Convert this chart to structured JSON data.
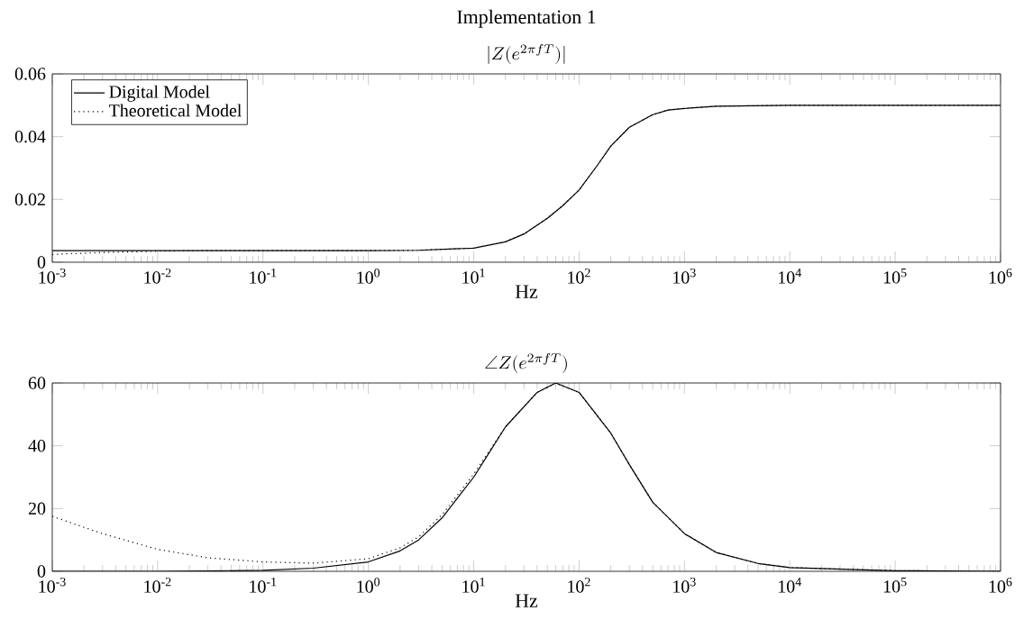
{
  "chart_data": [
    {
      "type": "line",
      "title": "Implementation 1",
      "subtitle": "|Z(e^{2\\pi fT})|",
      "xlabel": "Hz",
      "log": "x",
      "legend": "top left",
      "xlim": [
        0.001,
        1000000
      ],
      "ylim": [
        0,
        0.06
      ],
      "xticks": [
        {
          "value": 0.001,
          "label": "10$^{-3}$"
        },
        {
          "value": 0.01,
          "label": "10$^{-2}$"
        },
        {
          "value": 0.1,
          "label": "10$^{-1}$"
        },
        {
          "value": 1,
          "label": "10$^{0}$"
        },
        {
          "value": 10,
          "label": "10$^{1}$"
        },
        {
          "value": 100,
          "label": "10$^{2}$"
        },
        {
          "value": 1000,
          "label": "10$^{3}$"
        },
        {
          "value": 10000,
          "label": "10$^{4}$"
        },
        {
          "value": 100000,
          "label": "10$^{5}$"
        },
        {
          "value": 1000000,
          "label": "10$^{6}$"
        }
      ],
      "yticks": [
        0,
        0.02,
        0.04,
        0.06
      ],
      "series": [
        {
          "name": "Digital Model",
          "color": "#000000",
          "line_style": "solid",
          "x": [
            0.001,
            0.01,
            0.1,
            1,
            3,
            10,
            20,
            30,
            50,
            70,
            100,
            150,
            200,
            300,
            500,
            700,
            1000,
            2000,
            10000,
            100000,
            1000000
          ],
          "values": [
            0.0037,
            0.0037,
            0.0037,
            0.0037,
            0.0038,
            0.0045,
            0.0065,
            0.009,
            0.014,
            0.018,
            0.023,
            0.031,
            0.037,
            0.043,
            0.047,
            0.0485,
            0.049,
            0.0497,
            0.05,
            0.05,
            0.05
          ]
        },
        {
          "name": "Theoretical Model",
          "color": "#000000",
          "line_style": "dotted",
          "x": [
            0.001,
            0.003,
            0.01,
            0.03,
            0.1,
            1,
            3,
            10,
            20,
            30,
            50,
            70,
            100,
            150,
            200,
            300,
            500,
            700,
            1000,
            2000,
            10000,
            100000,
            1000000
          ],
          "values": [
            0.0025,
            0.0031,
            0.0035,
            0.0037,
            0.0037,
            0.0037,
            0.0038,
            0.0045,
            0.0065,
            0.009,
            0.014,
            0.018,
            0.023,
            0.031,
            0.037,
            0.043,
            0.047,
            0.0485,
            0.049,
            0.0497,
            0.05,
            0.05,
            0.05
          ]
        }
      ]
    },
    {
      "type": "line",
      "title": "\\angle Z(e^{2\\pi fT})",
      "xlabel": "Hz",
      "log": "x",
      "xlim": [
        0.001,
        1000000
      ],
      "ylim": [
        0,
        60
      ],
      "xticks": [
        {
          "value": 0.001,
          "label": "10$^{-3}$"
        },
        {
          "value": 0.01,
          "label": "10$^{-2}$"
        },
        {
          "value": 0.1,
          "label": "10$^{-1}$"
        },
        {
          "value": 1,
          "label": "10$^{0}$"
        },
        {
          "value": 10,
          "label": "10$^{1}$"
        },
        {
          "value": 100,
          "label": "10$^{2}$"
        },
        {
          "value": 1000,
          "label": "10$^{3}$"
        },
        {
          "value": 10000,
          "label": "10$^{4}$"
        },
        {
          "value": 100000,
          "label": "10$^{5}$"
        },
        {
          "value": 1000000,
          "label": "10$^{6}$"
        }
      ],
      "yticks": [
        0,
        20,
        40,
        60
      ],
      "series": [
        {
          "color": "#000000",
          "line_style": "solid",
          "x": [
            0.001,
            0.01,
            0.1,
            0.3,
            1,
            2,
            3,
            5,
            10,
            20,
            40,
            60,
            100,
            200,
            300,
            500,
            1000,
            2000,
            5000,
            10000,
            100000,
            1000000
          ],
          "values": [
            0,
            0,
            0.3,
            1,
            3,
            6.5,
            10,
            17,
            30,
            46,
            57,
            60,
            57,
            44,
            34,
            22,
            12,
            6,
            2.5,
            1.2,
            0.2,
            0
          ]
        },
        {
          "color": "#000000",
          "line_style": "dotted",
          "x": [
            0.001,
            0.003,
            0.01,
            0.03,
            0.1,
            0.3,
            1,
            2,
            3,
            5,
            10,
            20,
            40,
            60,
            100,
            200,
            300,
            500,
            1000,
            2000,
            5000,
            10000,
            100000,
            1000000
          ],
          "values": [
            17.5,
            12,
            7,
            4.3,
            3,
            2.6,
            4,
            7.5,
            11,
            18,
            31,
            46,
            57,
            60,
            57,
            44,
            34,
            22,
            12,
            6,
            2.5,
            1.2,
            0.2,
            0
          ]
        }
      ]
    }
  ]
}
